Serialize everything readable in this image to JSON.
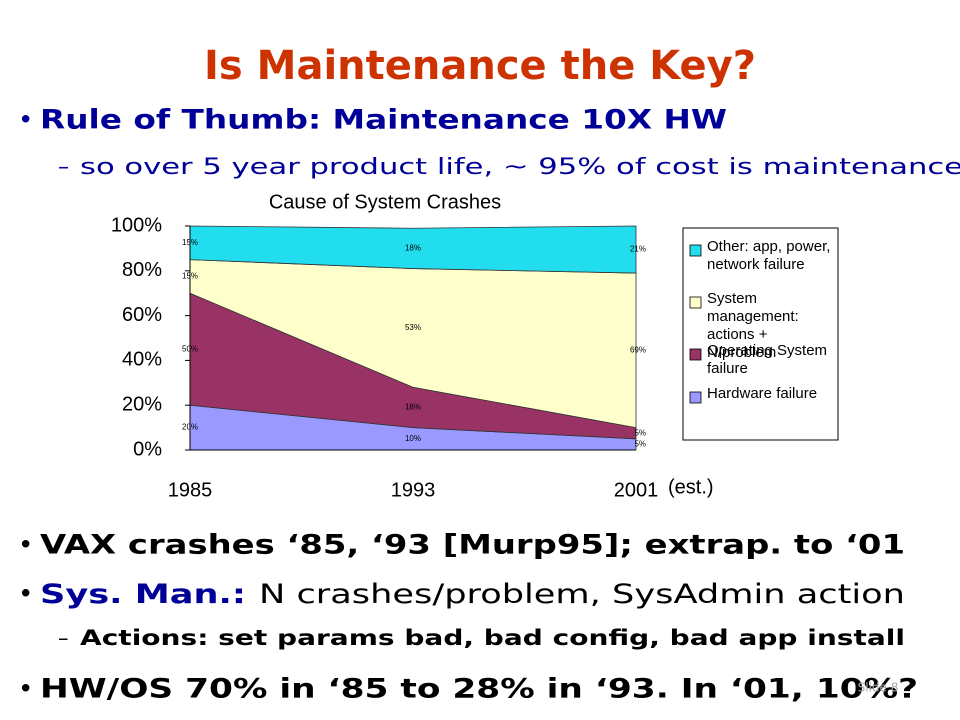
{
  "slide": {
    "title": "Is Maintenance the Key?",
    "bullets": [
      {
        "text": "Rule of Thumb: Maintenance 10X HW"
      },
      {
        "text": "so over 5 year product life, ~ 95% of cost is maintenance"
      },
      {
        "text": "VAX crashes ‘85, ‘93 [Murp95]; extrap. to ‘01"
      },
      {
        "label": "Sys. Man.:",
        "text": "N crashes/problem, SysAdmin action"
      },
      {
        "text": "Actions: set params bad, bad config, bad app install"
      },
      {
        "text": "HW/OS 70% in ‘85 to 28% in ‘93. In ‘01, 10%?"
      }
    ],
    "footer": "Slide 8"
  },
  "chart_data": {
    "type": "stacked_area",
    "title": "Cause of System Crashes",
    "categories": [
      "1985",
      "1993",
      "2001"
    ],
    "annotation": "(est.)",
    "ylim": [
      0,
      100
    ],
    "yticks": [
      {
        "value": 0,
        "label": "0%"
      },
      {
        "value": 20,
        "label": "20%"
      },
      {
        "value": 40,
        "label": "40%"
      },
      {
        "value": 60,
        "label": "60%"
      },
      {
        "value": 80,
        "label": "80%"
      },
      {
        "value": 100,
        "label": "100%"
      }
    ],
    "grid": false,
    "legend": "right",
    "series": [
      {
        "name": "Hardware failure",
        "color": "#9999ff",
        "values": [
          20,
          10,
          5
        ],
        "value_labels": [
          "20%",
          "10%",
          "5%"
        ]
      },
      {
        "name": "Operating System failure",
        "color": "#993366",
        "values": [
          50,
          18,
          5
        ],
        "value_labels": [
          "50%",
          "18%",
          "5%"
        ]
      },
      {
        "name": "System management: actions + N/problem",
        "color": "#ffffcc",
        "values": [
          15,
          53,
          69
        ],
        "value_labels": [
          "15%",
          "53%",
          "69%"
        ]
      },
      {
        "name": "Other: app, power, network failure",
        "color": "#22ddee",
        "values": [
          15,
          18,
          21
        ],
        "value_labels": [
          "15%",
          "18%",
          "21%"
        ]
      }
    ]
  }
}
